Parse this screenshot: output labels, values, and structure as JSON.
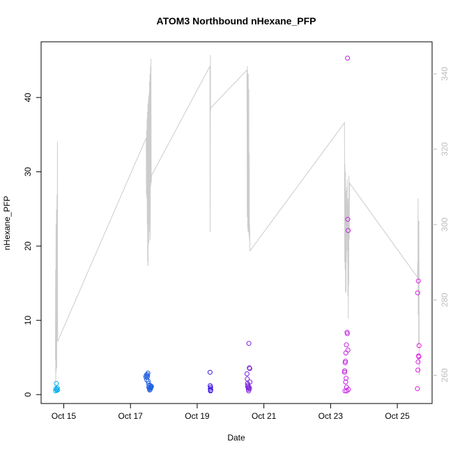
{
  "chart_data": {
    "type": "scatter",
    "title": "ATOM3 Northbound nHexane_PFP",
    "xlabel": "Date",
    "ylabel": "nHexane_PFP",
    "xlim": [
      "2016-10-14T07:43",
      "2016-10-26T01:02"
    ],
    "ylim": [
      -1.2,
      47.5
    ],
    "y2lim": [
      252.5,
      348.5
    ],
    "x_ticks": [
      {
        "label": "Oct 15",
        "value": "2016-10-15T00:00"
      },
      {
        "label": "Oct 17",
        "value": "2016-10-17T00:00"
      },
      {
        "label": "Oct 19",
        "value": "2016-10-19T00:00"
      },
      {
        "label": "Oct 21",
        "value": "2016-10-21T00:00"
      },
      {
        "label": "Oct 23",
        "value": "2016-10-23T00:00"
      },
      {
        "label": "Oct 25",
        "value": "2016-10-25T00:00"
      }
    ],
    "y_ticks": [
      0,
      10,
      20,
      30,
      40
    ],
    "y2_ticks": [
      260,
      280,
      300,
      320,
      340
    ],
    "grid": false,
    "series": [
      {
        "color": "#cccccc",
        "axis": "right",
        "mode": "line",
        "points": [
          [
            "2016-10-14T18:00",
            264
          ],
          [
            "2016-10-14T18:08",
            288
          ],
          [
            "2016-10-14T18:16",
            257
          ],
          [
            "2016-10-14T18:26",
            300
          ],
          [
            "2016-10-14T18:36",
            261
          ],
          [
            "2016-10-14T18:46",
            304
          ],
          [
            "2016-10-14T18:56",
            262
          ],
          [
            "2016-10-14T19:08",
            308
          ],
          [
            "2016-10-14T19:18",
            270
          ],
          [
            "2016-10-14T19:26",
            322
          ],
          [
            "2016-10-14T19:36",
            269
          ],
          [
            "2016-10-17T11:20",
            323
          ],
          [
            "2016-10-17T11:30",
            308
          ],
          [
            "2016-10-17T11:38",
            325
          ],
          [
            "2016-10-17T11:46",
            307
          ],
          [
            "2016-10-17T11:56",
            328
          ],
          [
            "2016-10-17T12:06",
            300
          ],
          [
            "2016-10-17T12:14",
            330
          ],
          [
            "2016-10-17T12:22",
            290
          ],
          [
            "2016-10-17T12:32",
            332
          ],
          [
            "2016-10-17T12:40",
            289
          ],
          [
            "2016-10-17T12:50",
            333
          ],
          [
            "2016-10-17T13:00",
            305
          ],
          [
            "2016-10-17T13:08",
            334
          ],
          [
            "2016-10-17T13:18",
            295
          ],
          [
            "2016-10-17T13:28",
            335
          ],
          [
            "2016-10-17T13:36",
            298
          ],
          [
            "2016-10-17T13:46",
            338
          ],
          [
            "2016-10-17T13:54",
            300
          ],
          [
            "2016-10-17T14:04",
            340
          ],
          [
            "2016-10-17T14:14",
            296
          ],
          [
            "2016-10-17T14:24",
            342
          ],
          [
            "2016-10-17T14:34",
            310
          ],
          [
            "2016-10-17T14:46",
            344
          ],
          [
            "2016-10-17T14:56",
            311
          ],
          [
            "2016-10-17T15:08",
            313
          ],
          [
            "2016-10-19T09:10",
            342
          ],
          [
            "2016-10-19T09:20",
            298
          ],
          [
            "2016-10-19T09:30",
            345
          ],
          [
            "2016-10-19T09:38",
            330
          ],
          [
            "2016-10-19T09:48",
            331
          ],
          [
            "2016-10-20T11:50",
            341
          ],
          [
            "2016-10-20T12:00",
            302
          ],
          [
            "2016-10-20T12:10",
            342
          ],
          [
            "2016-10-20T12:20",
            299
          ],
          [
            "2016-10-20T12:30",
            340
          ],
          [
            "2016-10-20T12:38",
            298
          ],
          [
            "2016-10-20T12:48",
            340
          ],
          [
            "2016-10-20T12:58",
            298
          ],
          [
            "2016-10-20T13:08",
            336
          ],
          [
            "2016-10-20T13:18",
            297
          ],
          [
            "2016-10-20T13:28",
            319
          ],
          [
            "2016-10-20T13:36",
            296
          ],
          [
            "2016-10-20T13:46",
            300
          ],
          [
            "2016-10-20T14:00",
            293
          ],
          [
            "2016-10-23T10:00",
            327
          ],
          [
            "2016-10-23T10:08",
            290
          ],
          [
            "2016-10-23T10:18",
            316
          ],
          [
            "2016-10-23T10:26",
            288
          ],
          [
            "2016-10-23T10:36",
            314
          ],
          [
            "2016-10-23T10:46",
            282
          ],
          [
            "2016-10-23T10:56",
            309
          ],
          [
            "2016-10-23T11:06",
            282
          ],
          [
            "2016-10-23T11:16",
            306
          ],
          [
            "2016-10-23T11:24",
            290
          ],
          [
            "2016-10-23T11:34",
            310
          ],
          [
            "2016-10-23T11:44",
            300
          ],
          [
            "2016-10-23T11:54",
            312
          ],
          [
            "2016-10-23T12:04",
            293
          ],
          [
            "2016-10-23T12:14",
            306
          ],
          [
            "2016-10-23T12:24",
            281
          ],
          [
            "2016-10-23T12:34",
            307
          ],
          [
            "2016-10-23T12:44",
            275
          ],
          [
            "2016-10-23T12:54",
            305
          ],
          [
            "2016-10-23T13:04",
            284
          ],
          [
            "2016-10-23T13:14",
            313
          ],
          [
            "2016-10-23T13:24",
            296
          ],
          [
            "2016-10-23T13:38",
            311
          ],
          [
            "2016-10-25T14:30",
            286
          ],
          [
            "2016-10-25T14:38",
            290
          ],
          [
            "2016-10-25T14:48",
            285
          ],
          [
            "2016-10-25T14:56",
            307
          ],
          [
            "2016-10-25T15:04",
            276
          ],
          [
            "2016-10-25T15:14",
            301
          ],
          [
            "2016-10-25T15:24",
            268
          ],
          [
            "2016-10-25T15:34",
            301
          ],
          [
            "2016-10-25T15:44",
            260
          ]
        ]
      },
      {
        "color": "#00aeef",
        "axis": "left",
        "mode": "points",
        "points": [
          [
            "2016-10-14T18:06",
            0.5
          ],
          [
            "2016-10-14T18:22",
            0.8
          ],
          [
            "2016-10-14T18:40",
            1.5
          ],
          [
            "2016-10-14T18:58",
            0.6
          ],
          [
            "2016-10-14T19:10",
            0.7
          ],
          [
            "2016-10-14T19:20",
            0.9
          ],
          [
            "2016-10-14T19:30",
            0.6
          ]
        ]
      },
      {
        "color": "#1f5fe0",
        "axis": "left",
        "mode": "points",
        "points": [
          [
            "2016-10-17T11:00",
            2.4
          ],
          [
            "2016-10-17T11:24",
            2.6
          ],
          [
            "2016-10-17T11:40",
            2.0
          ],
          [
            "2016-10-17T11:54",
            2.3
          ],
          [
            "2016-10-17T12:06",
            2.7
          ],
          [
            "2016-10-17T12:20",
            2.5
          ],
          [
            "2016-10-17T12:36",
            2.9
          ],
          [
            "2016-10-17T12:48",
            1.8
          ],
          [
            "2016-10-17T13:00",
            1.5
          ],
          [
            "2016-10-17T13:10",
            1.0
          ],
          [
            "2016-10-17T13:26",
            1.2
          ],
          [
            "2016-10-17T13:38",
            0.8
          ],
          [
            "2016-10-17T13:50",
            0.6
          ],
          [
            "2016-10-17T14:02",
            0.9
          ],
          [
            "2016-10-17T14:14",
            0.7
          ],
          [
            "2016-10-17T14:26",
            1.2
          ],
          [
            "2016-10-17T14:40",
            0.9
          ],
          [
            "2016-10-17T14:52",
            1.0
          ],
          [
            "2016-10-17T15:06",
            1.1
          ]
        ]
      },
      {
        "color": "#3a14e0",
        "axis": "left",
        "mode": "points",
        "points": [
          [
            "2016-10-19T09:16",
            3.0
          ],
          [
            "2016-10-19T09:22",
            1.2
          ],
          [
            "2016-10-19T09:28",
            0.8
          ],
          [
            "2016-10-19T09:34",
            0.5
          ],
          [
            "2016-10-19T09:40",
            1.0
          ],
          [
            "2016-10-19T09:46",
            0.6
          ]
        ]
      },
      {
        "color": "#7a22d8",
        "axis": "left",
        "mode": "points",
        "points": [
          [
            "2016-10-20T11:52",
            2.8
          ],
          [
            "2016-10-20T12:02",
            2.1
          ],
          [
            "2016-10-20T12:12",
            1.5
          ],
          [
            "2016-10-20T12:22",
            1.1
          ],
          [
            "2016-10-20T12:32",
            1.3
          ],
          [
            "2016-10-20T12:42",
            0.9
          ],
          [
            "2016-10-20T12:52",
            0.7
          ],
          [
            "2016-10-20T13:02",
            0.5
          ],
          [
            "2016-10-20T13:12",
            6.9
          ],
          [
            "2016-10-20T13:22",
            1.0
          ],
          [
            "2016-10-20T13:30",
            3.6
          ],
          [
            "2016-10-20T13:40",
            0.8
          ],
          [
            "2016-10-20T13:50",
            3.5
          ],
          [
            "2016-10-20T14:00",
            1.7
          ]
        ]
      },
      {
        "color": "#c21de0",
        "axis": "left",
        "mode": "points",
        "points": [
          [
            "2016-10-23T10:02",
            3.0
          ],
          [
            "2016-10-23T10:10",
            3.2
          ],
          [
            "2016-10-23T10:20",
            0.5
          ],
          [
            "2016-10-23T10:30",
            4.3
          ],
          [
            "2016-10-23T10:40",
            4.5
          ],
          [
            "2016-10-23T10:50",
            1.7
          ],
          [
            "2016-10-23T11:00",
            5.6
          ],
          [
            "2016-10-23T11:10",
            2.2
          ],
          [
            "2016-10-23T11:20",
            6.7
          ],
          [
            "2016-10-23T11:30",
            1.0
          ],
          [
            "2016-10-23T11:40",
            0.5
          ],
          [
            "2016-10-23T11:50",
            8.4
          ],
          [
            "2016-10-23T12:00",
            8.2
          ],
          [
            "2016-10-23T12:10",
            45.3
          ],
          [
            "2016-10-23T12:20",
            23.6
          ],
          [
            "2016-10-23T12:30",
            6.0
          ],
          [
            "2016-10-23T12:40",
            22.1
          ],
          [
            "2016-10-23T12:50",
            0.7
          ]
        ]
      },
      {
        "color": "#e016e0",
        "axis": "left",
        "mode": "points",
        "points": [
          [
            "2016-10-25T14:28",
            0.8
          ],
          [
            "2016-10-25T14:38",
            13.7
          ],
          [
            "2016-10-25T14:48",
            3.3
          ],
          [
            "2016-10-25T14:58",
            4.4
          ],
          [
            "2016-10-25T15:08",
            15.3
          ],
          [
            "2016-10-25T15:18",
            5.2
          ],
          [
            "2016-10-25T15:28",
            5.1
          ],
          [
            "2016-10-25T15:38",
            6.6
          ]
        ]
      }
    ]
  }
}
